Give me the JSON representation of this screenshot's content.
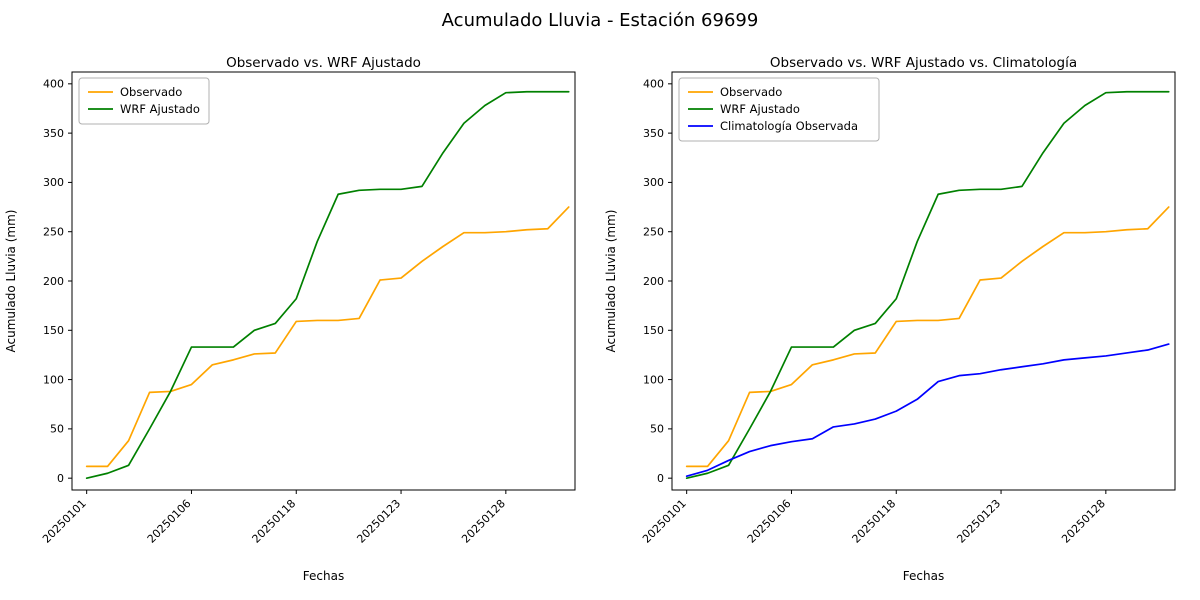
{
  "figure": {
    "title": "Acumulado Lluvia - Estación 69699"
  },
  "chart_data": [
    {
      "type": "line",
      "title": "Observado vs. WRF Ajustado",
      "xlabel": "Fechas",
      "ylabel": "Acumulado Lluvia (mm)",
      "xlim": [
        -0.7,
        23.3
      ],
      "ylim": [
        -12,
        412
      ],
      "y_ticks": [
        0,
        50,
        100,
        150,
        200,
        250,
        300,
        350,
        400
      ],
      "x_tick_positions": [
        0,
        5,
        10,
        15,
        20
      ],
      "x_tick_labels": [
        "20250101",
        "20250106",
        "20250118",
        "20250123",
        "20250128"
      ],
      "legend_position": "upper left",
      "grid": false,
      "x_index": [
        0,
        1,
        2,
        3,
        4,
        5,
        6,
        7,
        8,
        9,
        10,
        11,
        12,
        13,
        14,
        15,
        16,
        17,
        18,
        19,
        20,
        21,
        22,
        23
      ],
      "series": [
        {
          "name": "Observado",
          "color": "#ffa500",
          "values": [
            12,
            12,
            38,
            87,
            88,
            95,
            115,
            120,
            126,
            127,
            159,
            160,
            160,
            162,
            201,
            203,
            220,
            235,
            249,
            249,
            250,
            252,
            253,
            275
          ]
        },
        {
          "name": "WRF Ajustado",
          "color": "#008000",
          "values": [
            0,
            5,
            13,
            50,
            88,
            133,
            133,
            133,
            150,
            157,
            182,
            240,
            288,
            292,
            293,
            293,
            296,
            330,
            360,
            378,
            391,
            392,
            392,
            392
          ]
        }
      ]
    },
    {
      "type": "line",
      "title": "Observado vs. WRF Ajustado vs. Climatología",
      "xlabel": "Fechas",
      "ylabel": "Acumulado Lluvia (mm)",
      "xlim": [
        -0.7,
        23.3
      ],
      "ylim": [
        -12,
        412
      ],
      "y_ticks": [
        0,
        50,
        100,
        150,
        200,
        250,
        300,
        350,
        400
      ],
      "x_tick_positions": [
        0,
        5,
        10,
        15,
        20
      ],
      "x_tick_labels": [
        "20250101",
        "20250106",
        "20250118",
        "20250123",
        "20250128"
      ],
      "legend_position": "upper left",
      "grid": false,
      "x_index": [
        0,
        1,
        2,
        3,
        4,
        5,
        6,
        7,
        8,
        9,
        10,
        11,
        12,
        13,
        14,
        15,
        16,
        17,
        18,
        19,
        20,
        21,
        22,
        23
      ],
      "series": [
        {
          "name": "Observado",
          "color": "#ffa500",
          "values": [
            12,
            12,
            38,
            87,
            88,
            95,
            115,
            120,
            126,
            127,
            159,
            160,
            160,
            162,
            201,
            203,
            220,
            235,
            249,
            249,
            250,
            252,
            253,
            275
          ]
        },
        {
          "name": "WRF Ajustado",
          "color": "#008000",
          "values": [
            0,
            5,
            13,
            50,
            88,
            133,
            133,
            133,
            150,
            157,
            182,
            240,
            288,
            292,
            293,
            293,
            296,
            330,
            360,
            378,
            391,
            392,
            392,
            392
          ]
        },
        {
          "name": "Climatología Observada",
          "color": "#0000ff",
          "values": [
            2,
            8,
            18,
            27,
            33,
            37,
            40,
            52,
            55,
            60,
            68,
            80,
            98,
            104,
            106,
            110,
            113,
            116,
            120,
            122,
            124,
            127,
            130,
            136
          ]
        }
      ]
    }
  ]
}
